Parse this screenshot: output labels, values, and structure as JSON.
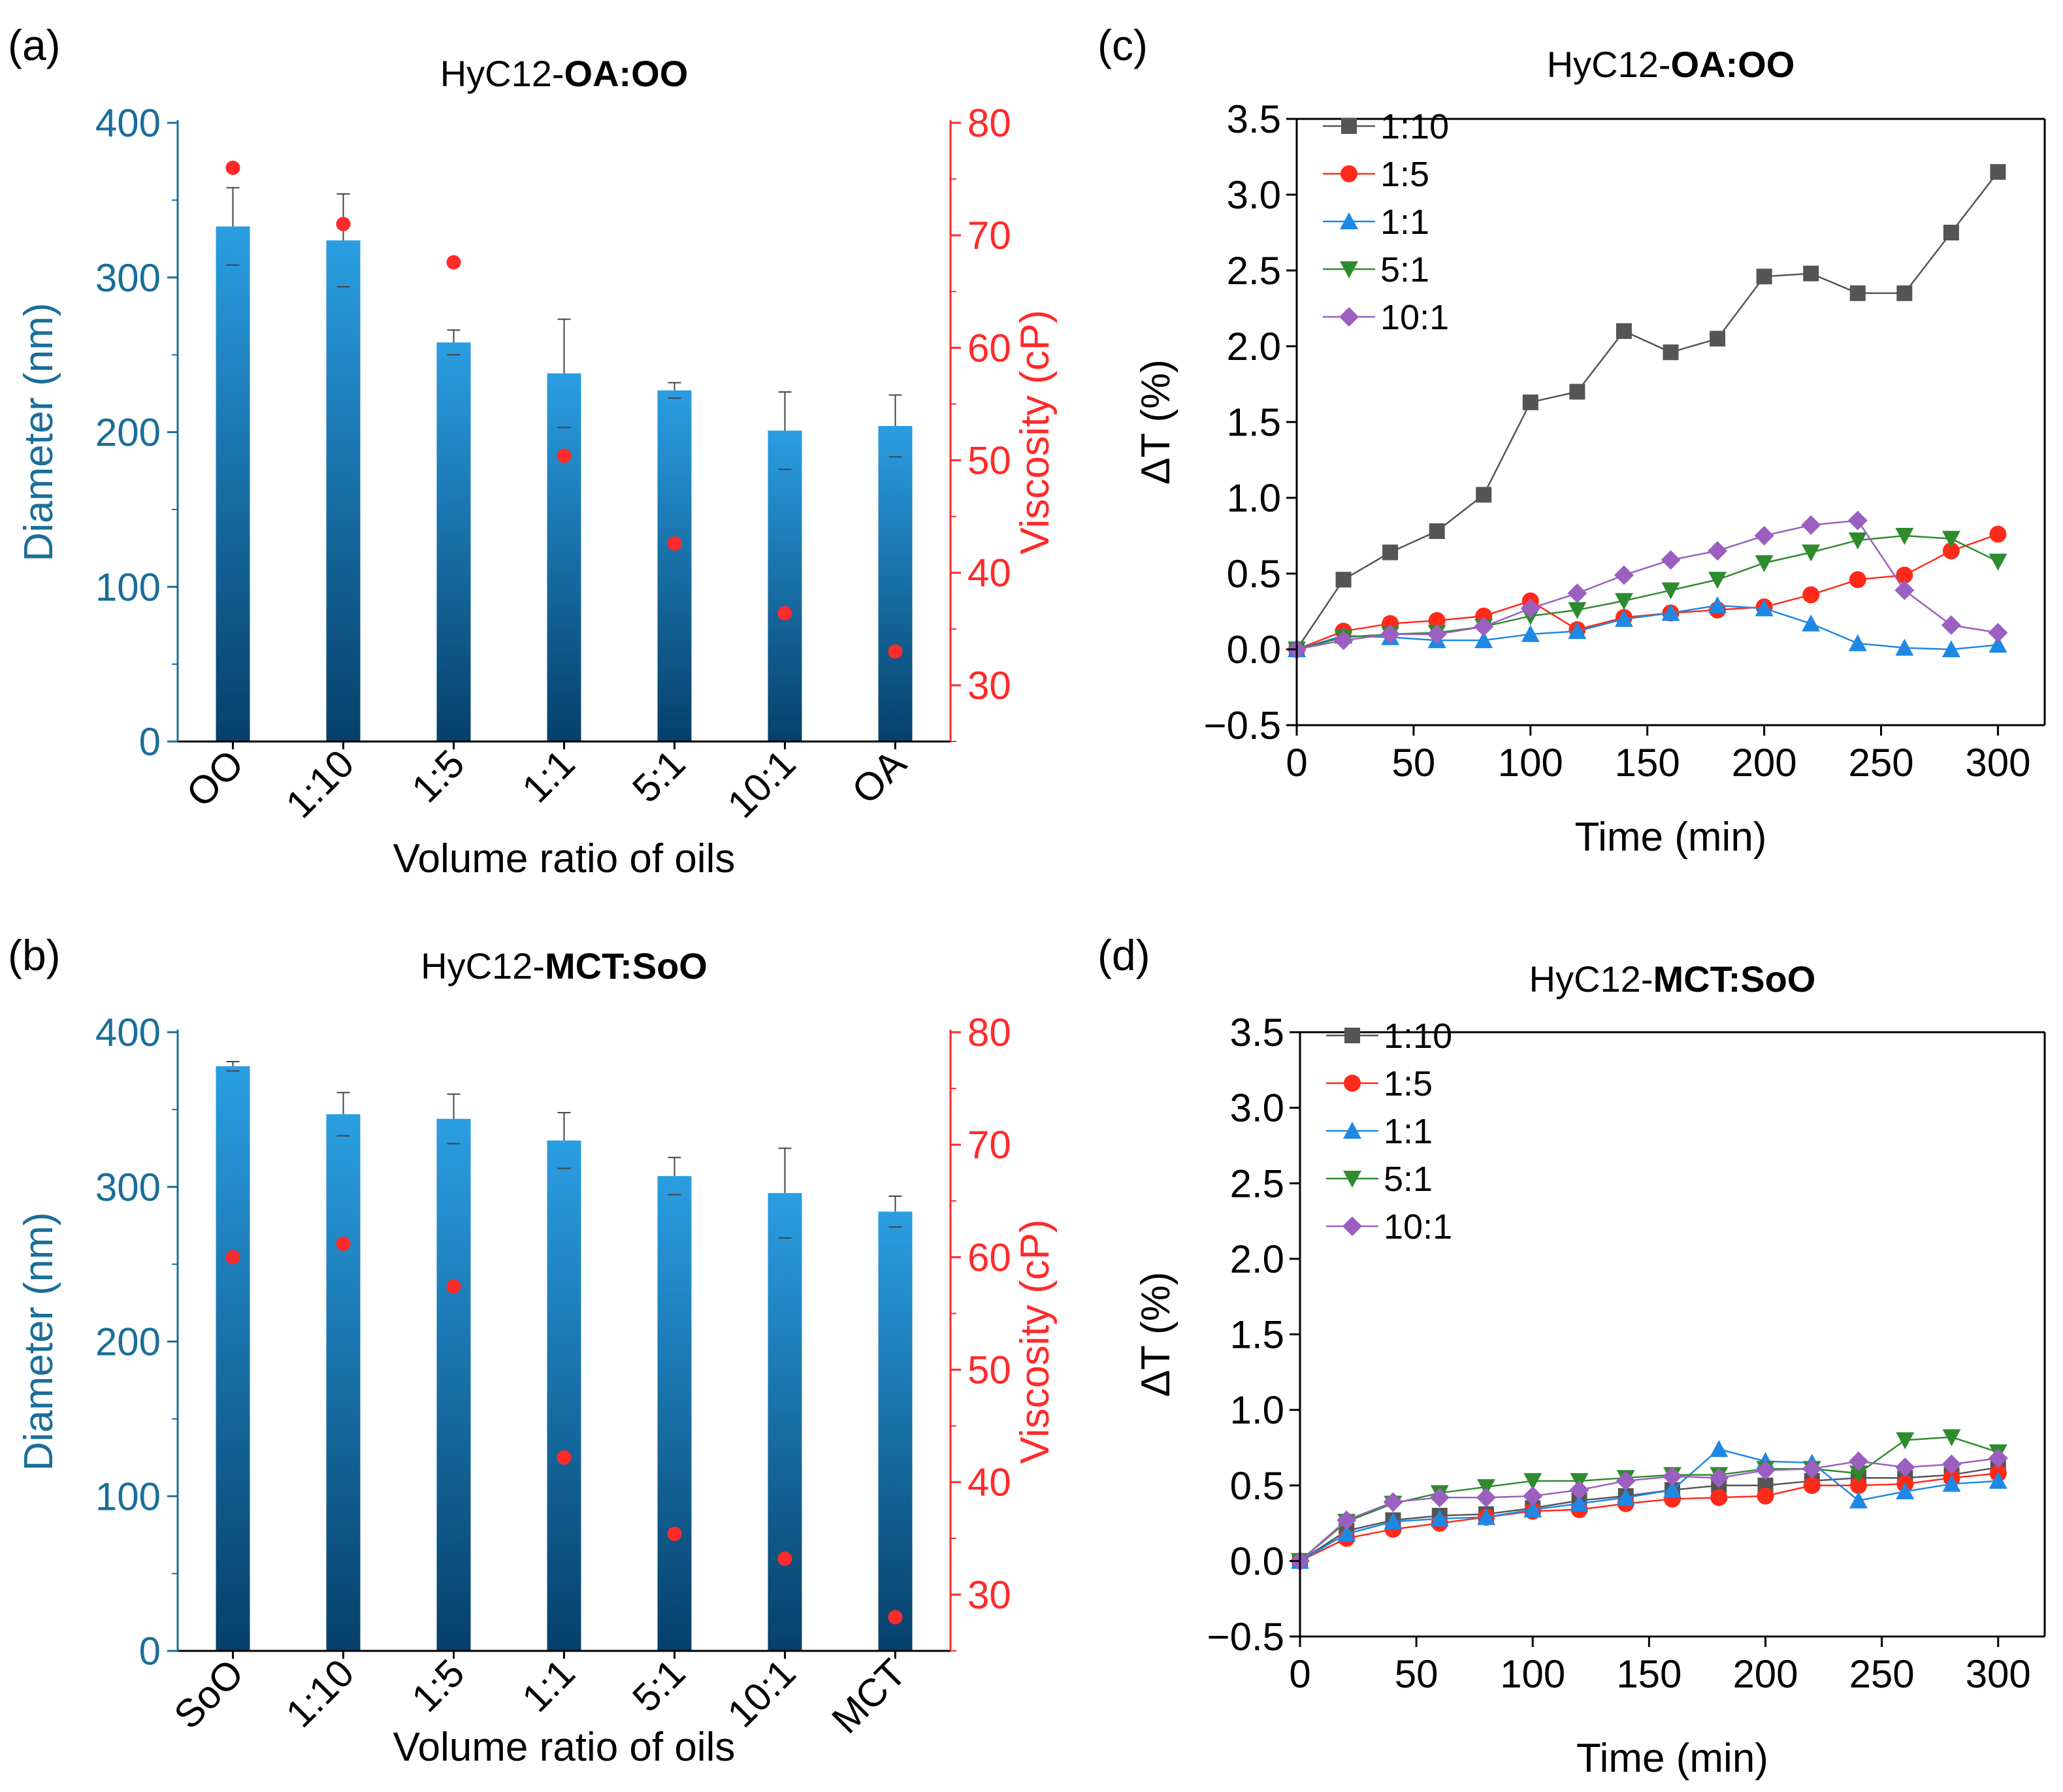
{
  "colors": {
    "diameter_axis": "#1a6e99",
    "viscosity_axis": "#ff2a2a",
    "bar_top": "#2a9ee2",
    "bar_bottom": "#06406a",
    "series": [
      "#555555",
      "#ff2a1a",
      "#1e88e5",
      "#2e8b2e",
      "#9b5fc0"
    ]
  },
  "chart_data": [
    {
      "panel": "(a)",
      "type": "bar",
      "title_prefix": "HyC12-",
      "title_bold": "OA:OO",
      "xlabel": "Volume ratio of oils",
      "ylabel": "Diameter (nm)",
      "y2label": "Viscosity (cP)",
      "categories": [
        "OO",
        "1:10",
        "1:5",
        "1:1",
        "5:1",
        "10:1",
        "OA"
      ],
      "ylim": [
        0,
        400
      ],
      "yticks": [
        0,
        100,
        200,
        300,
        400
      ],
      "y2lim": [
        25,
        80
      ],
      "y2ticks": [
        30,
        40,
        50,
        60,
        70,
        80
      ],
      "diameter": [
        333,
        324,
        258,
        238,
        227,
        201,
        204
      ],
      "diameter_err": [
        25,
        30,
        8,
        35,
        5,
        25,
        20
      ],
      "viscosity": [
        76.0,
        71.0,
        67.6,
        50.4,
        42.6,
        36.4,
        33.0
      ]
    },
    {
      "panel": "(b)",
      "type": "bar",
      "title_prefix": "HyC12-",
      "title_bold": "MCT:SoO",
      "xlabel": "Volume ratio of oils",
      "ylabel": "Diameter (nm)",
      "y2label": "Viscosity (cP)",
      "categories": [
        "SoO",
        "1:10",
        "1:5",
        "1:1",
        "5:1",
        "10:1",
        "MCT"
      ],
      "ylim": [
        0,
        400
      ],
      "yticks": [
        0,
        100,
        200,
        300,
        400
      ],
      "y2lim": [
        25,
        80
      ],
      "y2ticks": [
        30,
        40,
        50,
        60,
        70,
        80
      ],
      "diameter": [
        378,
        347,
        344,
        330,
        307,
        296,
        284
      ],
      "diameter_err": [
        3,
        14,
        16,
        18,
        12,
        29,
        10
      ],
      "viscosity": [
        60.0,
        61.2,
        57.4,
        42.2,
        35.4,
        33.2,
        28.0
      ]
    },
    {
      "panel": "(c)",
      "type": "line",
      "title_prefix": "HyC12-",
      "title_bold": "OA:OO",
      "xlabel": "Time (min)",
      "ylabel": "ΔT (%)",
      "xlim": [
        0,
        320
      ],
      "xticks": [
        0,
        50,
        100,
        150,
        200,
        250,
        300
      ],
      "ylim": [
        -0.5,
        3.5
      ],
      "yticks": [
        "-0.5",
        "0.0",
        "0.5",
        "1.0",
        "1.5",
        "2.0",
        "2.5",
        "3.0",
        "3.5"
      ],
      "x": [
        0,
        20,
        40,
        60,
        80,
        100,
        120,
        140,
        160,
        180,
        200,
        220,
        240,
        260,
        280,
        300
      ],
      "series": [
        {
          "name": "1:10",
          "marker": "square",
          "values": [
            0,
            0.46,
            0.64,
            0.78,
            1.02,
            1.63,
            1.7,
            2.1,
            1.96,
            2.05,
            2.46,
            2.48,
            2.35,
            2.35,
            2.75,
            3.15
          ]
        },
        {
          "name": "1:5",
          "marker": "circle",
          "values": [
            0,
            0.12,
            0.17,
            0.19,
            0.22,
            0.32,
            0.13,
            0.21,
            0.24,
            0.26,
            0.28,
            0.36,
            0.46,
            0.49,
            0.65,
            0.76
          ]
        },
        {
          "name": "1:1",
          "marker": "triangle-up",
          "values": [
            0,
            0.09,
            0.08,
            0.06,
            0.06,
            0.1,
            0.12,
            0.2,
            0.24,
            0.29,
            0.27,
            0.17,
            0.04,
            0.01,
            0.0,
            0.03
          ]
        },
        {
          "name": "5:1",
          "marker": "triangle-down",
          "values": [
            0,
            0.08,
            0.1,
            0.11,
            0.15,
            0.22,
            0.26,
            0.32,
            0.39,
            0.46,
            0.57,
            0.64,
            0.72,
            0.75,
            0.73,
            0.58
          ]
        },
        {
          "name": "10:1",
          "marker": "diamond",
          "values": [
            0,
            0.06,
            0.1,
            0.1,
            0.15,
            0.27,
            0.37,
            0.49,
            0.59,
            0.65,
            0.75,
            0.82,
            0.85,
            0.39,
            0.16,
            0.11
          ]
        }
      ]
    },
    {
      "panel": "(d)",
      "type": "line",
      "title_prefix": "HyC12-",
      "title_bold": "MCT:SoO",
      "xlabel": "Time (min)",
      "ylabel": "ΔT (%)",
      "xlim": [
        0,
        320
      ],
      "xticks": [
        0,
        50,
        100,
        150,
        200,
        250,
        300
      ],
      "ylim": [
        -0.5,
        3.5
      ],
      "yticks": [
        "-0.5",
        "0.0",
        "0.5",
        "1.0",
        "1.5",
        "2.0",
        "2.5",
        "3.0",
        "3.5"
      ],
      "x": [
        0,
        20,
        40,
        60,
        80,
        100,
        120,
        140,
        160,
        180,
        200,
        220,
        240,
        260,
        280,
        300
      ],
      "series": [
        {
          "name": "1:10",
          "marker": "square",
          "values": [
            0,
            0.2,
            0.27,
            0.3,
            0.31,
            0.35,
            0.4,
            0.43,
            0.47,
            0.5,
            0.5,
            0.53,
            0.55,
            0.55,
            0.57,
            0.62
          ]
        },
        {
          "name": "1:5",
          "marker": "circle",
          "values": [
            0,
            0.15,
            0.21,
            0.25,
            0.29,
            0.33,
            0.34,
            0.38,
            0.41,
            0.42,
            0.43,
            0.5,
            0.5,
            0.51,
            0.55,
            0.58
          ]
        },
        {
          "name": "1:1",
          "marker": "triangle-up",
          "values": [
            0,
            0.18,
            0.26,
            0.28,
            0.29,
            0.34,
            0.38,
            0.42,
            0.47,
            0.74,
            0.66,
            0.65,
            0.4,
            0.46,
            0.51,
            0.53
          ]
        },
        {
          "name": "5:1",
          "marker": "triangle-down",
          "values": [
            0,
            0.26,
            0.38,
            0.45,
            0.49,
            0.53,
            0.53,
            0.55,
            0.57,
            0.57,
            0.61,
            0.61,
            0.58,
            0.8,
            0.82,
            0.72
          ]
        },
        {
          "name": "10:1",
          "marker": "diamond",
          "values": [
            0,
            0.27,
            0.39,
            0.42,
            0.42,
            0.43,
            0.47,
            0.53,
            0.56,
            0.55,
            0.6,
            0.61,
            0.66,
            0.62,
            0.64,
            0.68
          ]
        }
      ]
    }
  ]
}
